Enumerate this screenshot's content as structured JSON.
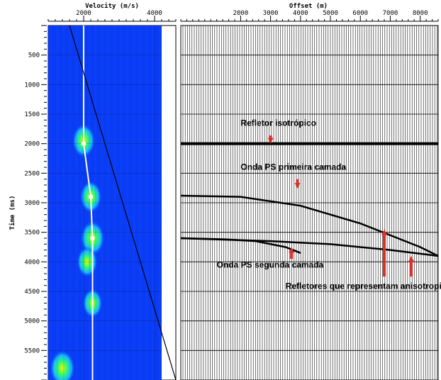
{
  "colors": {
    "velocity_bg": "#0a3cf5",
    "velocity_pick": "#ffffff",
    "arrow": "#d9302a",
    "axis": "#000000",
    "grid": "#000000"
  },
  "chart_data": [
    {
      "type": "heatmap",
      "title": "Velocity (m/s)",
      "xlabel": "Velocity (m/s)",
      "ylabel": "Time (ms)",
      "xlim": [
        1000,
        4600
      ],
      "ylim": [
        0,
        6000
      ],
      "xticks": [
        2000,
        4000
      ],
      "yticks": [
        500,
        1000,
        1500,
        2000,
        2500,
        3000,
        3500,
        4000,
        4500,
        5000,
        5500
      ],
      "xtick_labels": [
        "2000",
        "4000"
      ],
      "ytick_labels": [
        "500",
        "1000",
        "1500",
        "2000",
        "2500",
        "3000",
        "3500",
        "4000",
        "4500",
        "5000",
        "5500"
      ],
      "velocity_picks": [
        {
          "time": 0,
          "velocity": 2000
        },
        {
          "time": 2000,
          "velocity": 2000
        },
        {
          "time": 2900,
          "velocity": 2200
        },
        {
          "time": 3600,
          "velocity": 2250
        },
        {
          "time": 6000,
          "velocity": 2250
        }
      ],
      "guide_line": [
        {
          "time": 0,
          "velocity": 1600
        },
        {
          "time": 6000,
          "velocity": 4600
        }
      ],
      "semblance_blobs": [
        {
          "time": 1950,
          "velocity": 2000,
          "strength": 0.8
        },
        {
          "time": 2900,
          "velocity": 2200,
          "strength": 0.7
        },
        {
          "time": 3600,
          "velocity": 2250,
          "strength": 0.9
        },
        {
          "time": 4000,
          "velocity": 2100,
          "strength": 0.6
        },
        {
          "time": 4700,
          "velocity": 2250,
          "strength": 0.5
        },
        {
          "time": 5800,
          "velocity": 1400,
          "strength": 1.0
        }
      ]
    },
    {
      "type": "scatter",
      "title": "Offset (m)",
      "xlabel": "Offset (m)",
      "ylabel": "Time (ms)",
      "xlim": [
        0,
        8600
      ],
      "ylim": [
        0,
        6000
      ],
      "xticks": [
        2000,
        3000,
        4000,
        5000,
        6000,
        7000,
        8000
      ],
      "xtick_labels": [
        "2000",
        "3000",
        "4000",
        "5000",
        "6000",
        "7000",
        "8000"
      ],
      "series": [
        {
          "name": "Refletor isotrópico",
          "x": [
            0,
            2000,
            4000,
            6000,
            8000,
            8600
          ],
          "y": [
            2000,
            2000,
            2000,
            2000,
            2000,
            2000
          ]
        },
        {
          "name": "Onda PS primeira camada",
          "x": [
            0,
            2000,
            4000,
            6000,
            8000,
            8600
          ],
          "y": [
            2880,
            2900,
            3050,
            3350,
            3750,
            3900
          ]
        },
        {
          "name": "Onda PS segunda camada",
          "x": [
            0,
            1500,
            2500,
            3500,
            4000
          ],
          "y": [
            3600,
            3620,
            3650,
            3750,
            3850
          ]
        },
        {
          "name": "Refletores que representam anisotropia",
          "x": [
            0,
            3000,
            5000,
            7000,
            8600
          ],
          "y": [
            3600,
            3650,
            3700,
            3800,
            3900
          ]
        }
      ],
      "annotations": [
        {
          "text": "Refletor isotrópico",
          "x": 2000,
          "y": 1700
        },
        {
          "text": "Onda PS primeira camada",
          "x": 2000,
          "y": 2440
        },
        {
          "text": "Onda PS segunda camada",
          "x": 1200,
          "y": 4100
        },
        {
          "text": "Refletores que representam anisotropia",
          "x": 3500,
          "y": 4460
        }
      ],
      "arrows": [
        {
          "x": 3000,
          "y_tail": 1860,
          "y_head": 2000
        },
        {
          "x": 3900,
          "y_tail": 2600,
          "y_head": 2760
        },
        {
          "x": 3700,
          "y_tail": 3950,
          "y_head": 3750
        },
        {
          "x": 6800,
          "y_tail": 4250,
          "y_head": 3450
        },
        {
          "x": 7700,
          "y_tail": 4250,
          "y_head": 3900
        }
      ]
    }
  ]
}
